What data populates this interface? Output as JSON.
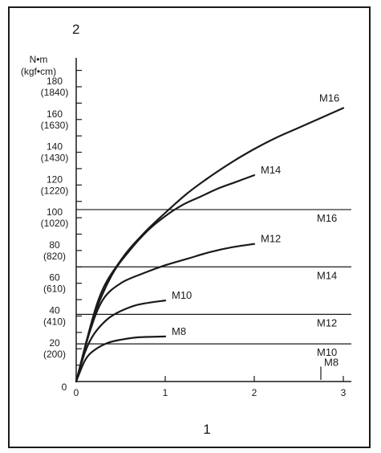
{
  "chart_data": {
    "type": "line",
    "corner_label_top": "2",
    "corner_label_bottom": "1",
    "y_unit_primary": "N•m",
    "y_unit_secondary": "(kgf•cm)",
    "xlim": [
      0,
      3
    ],
    "ylim": [
      0,
      180
    ],
    "x_ticks": [
      {
        "value": 0,
        "label": "0"
      },
      {
        "value": 1,
        "label": "1"
      },
      {
        "value": 2,
        "label": "2"
      },
      {
        "value": 3,
        "label": "3"
      }
    ],
    "y_origin_label": "0",
    "y_ticks": [
      {
        "value": 20,
        "primary": "20",
        "secondary": "(200)"
      },
      {
        "value": 40,
        "primary": "40",
        "secondary": "(410)"
      },
      {
        "value": 60,
        "primary": "60",
        "secondary": "(610)"
      },
      {
        "value": 80,
        "primary": "80",
        "secondary": "(820)"
      },
      {
        "value": 100,
        "primary": "100",
        "secondary": "(1020)"
      },
      {
        "value": 120,
        "primary": "120",
        "secondary": "(1220)"
      },
      {
        "value": 140,
        "primary": "140",
        "secondary": "(1430)"
      },
      {
        "value": 160,
        "primary": "160",
        "secondary": "(1630)"
      },
      {
        "value": 180,
        "primary": "180",
        "secondary": "(1840)"
      }
    ],
    "series": [
      {
        "name": "M8",
        "x": [
          0,
          0.1,
          0.2,
          0.35,
          0.5,
          0.7,
          1.0
        ],
        "y": [
          0,
          13,
          19,
          23.5,
          25.5,
          27,
          27.5
        ]
      },
      {
        "name": "M10",
        "x": [
          0,
          0.1,
          0.2,
          0.35,
          0.5,
          0.7,
          1.0
        ],
        "y": [
          0,
          18,
          29,
          38,
          43,
          47,
          49.5
        ]
      },
      {
        "name": "M12",
        "x": [
          0,
          0.15,
          0.3,
          0.5,
          0.75,
          1.0,
          1.25,
          1.5,
          1.75,
          2.0
        ],
        "y": [
          0,
          30,
          50,
          60,
          66,
          71,
          75,
          79,
          82,
          84
        ]
      },
      {
        "name": "M14",
        "x": [
          0,
          0.2,
          0.4,
          0.6,
          0.8,
          1.0,
          1.2,
          1.4,
          1.6,
          1.8,
          2.0
        ],
        "y": [
          0,
          40,
          65,
          80,
          92,
          101,
          108,
          113,
          118,
          122,
          126
        ]
      },
      {
        "name": "M16",
        "x": [
          0,
          0.25,
          0.5,
          0.75,
          1.0,
          1.25,
          1.5,
          1.75,
          2.0,
          2.25,
          2.5,
          2.75,
          3.0
        ],
        "y": [
          0,
          50,
          74,
          90,
          103,
          115,
          125,
          134,
          142,
          149,
          155,
          161,
          167
        ]
      }
    ],
    "reference_lines": [
      {
        "name": "M16",
        "y": 105
      },
      {
        "name": "M14",
        "y": 70
      },
      {
        "name": "M12",
        "y": 41
      },
      {
        "name": "M10",
        "y": 23
      },
      {
        "name": "M8",
        "y": 15
      }
    ],
    "grid": false,
    "legend": "none"
  },
  "colors": {
    "ink": "#1a1a1a",
    "background": "#ffffff"
  }
}
